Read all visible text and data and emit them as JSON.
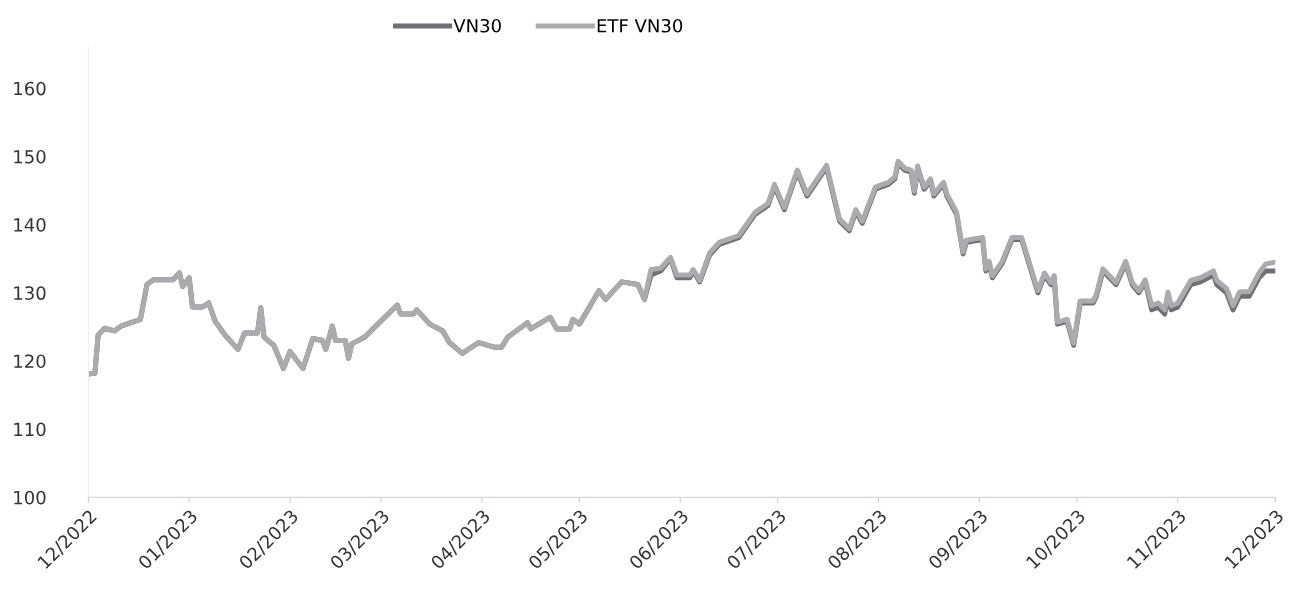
{
  "chart_data": {
    "type": "line",
    "x": [
      "2022-12-01",
      "2022-12-03",
      "2022-12-04",
      "2022-12-06",
      "2022-12-09",
      "2022-12-11",
      "2022-12-17",
      "2022-12-19",
      "2022-12-21",
      "2022-12-27",
      "2022-12-29",
      "2022-12-30",
      "2023-01-01",
      "2023-01-02",
      "2023-01-05",
      "2023-01-07",
      "2023-01-09",
      "2023-01-12",
      "2023-01-16",
      "2023-01-18",
      "2023-01-22",
      "2023-01-23",
      "2023-01-24",
      "2023-01-27",
      "2023-01-30",
      "2023-02-01",
      "2023-02-05",
      "2023-02-08",
      "2023-02-11",
      "2023-02-12",
      "2023-02-14",
      "2023-02-15",
      "2023-02-18",
      "2023-02-19",
      "2023-02-20",
      "2023-02-24",
      "2023-02-28",
      "2023-03-06",
      "2023-03-07",
      "2023-03-11",
      "2023-03-12",
      "2023-03-16",
      "2023-03-20",
      "2023-03-22",
      "2023-03-26",
      "2023-03-31",
      "2023-04-05",
      "2023-04-07",
      "2023-04-09",
      "2023-04-15",
      "2023-04-16",
      "2023-04-22",
      "2023-04-24",
      "2023-04-28",
      "2023-04-29",
      "2023-05-01",
      "2023-05-07",
      "2023-05-09",
      "2023-05-14",
      "2023-05-19",
      "2023-05-21",
      "2023-05-23",
      "2023-05-26",
      "2023-05-29",
      "2023-05-31",
      "2023-06-04",
      "2023-06-05",
      "2023-06-07",
      "2023-06-10",
      "2023-06-13",
      "2023-06-19",
      "2023-06-24",
      "2023-06-28",
      "2023-06-30",
      "2023-07-03",
      "2023-07-07",
      "2023-07-10",
      "2023-07-15",
      "2023-07-16",
      "2023-07-20",
      "2023-07-23",
      "2023-07-25",
      "2023-07-27",
      "2023-07-31",
      "2023-08-04",
      "2023-08-06",
      "2023-08-07",
      "2023-08-09",
      "2023-08-11",
      "2023-08-12",
      "2023-08-13",
      "2023-08-15",
      "2023-08-17",
      "2023-08-18",
      "2023-08-21",
      "2023-08-22",
      "2023-08-25",
      "2023-08-27",
      "2023-08-28",
      "2023-09-02",
      "2023-09-03",
      "2023-09-04",
      "2023-09-05",
      "2023-09-08",
      "2023-09-11",
      "2023-09-14",
      "2023-09-19",
      "2023-09-21",
      "2023-09-23",
      "2023-09-24",
      "2023-09-25",
      "2023-09-28",
      "2023-09-30",
      "2023-10-02",
      "2023-10-06",
      "2023-10-07",
      "2023-10-09",
      "2023-10-13",
      "2023-10-16",
      "2023-10-18",
      "2023-10-20",
      "2023-10-22",
      "2023-10-24",
      "2023-10-26",
      "2023-10-28",
      "2023-10-29",
      "2023-10-30",
      "2023-11-01",
      "2023-11-05",
      "2023-11-08",
      "2023-11-12",
      "2023-11-13",
      "2023-11-16",
      "2023-11-18",
      "2023-11-20",
      "2023-11-23",
      "2023-11-26",
      "2023-11-28",
      "2023-12-01"
    ],
    "series": [
      {
        "name": "VN30",
        "color": "#6e7075",
        "values": [
          118.1,
          118.2,
          123.8,
          124.8,
          124.4,
          125.1,
          126.1,
          131.2,
          131.9,
          131.9,
          132.9,
          130.9,
          132.2,
          127.9,
          127.9,
          128.5,
          125.8,
          123.8,
          121.7,
          124.1,
          124.1,
          127.8,
          123.5,
          122.3,
          118.9,
          121.4,
          118.9,
          123.3,
          123.0,
          121.7,
          125.1,
          123.0,
          123.0,
          120.4,
          122.5,
          123.5,
          125.4,
          128.2,
          126.9,
          126.9,
          127.5,
          125.4,
          124.4,
          122.7,
          121.1,
          122.7,
          122.0,
          122.0,
          123.5,
          125.6,
          124.7,
          126.4,
          124.7,
          124.7,
          126.1,
          125.4,
          130.3,
          129.0,
          131.6,
          131.2,
          129.0,
          132.6,
          133.2,
          135.0,
          132.2,
          132.2,
          133.2,
          131.6,
          135.5,
          137.1,
          138.1,
          141.5,
          142.8,
          145.6,
          142.2,
          147.7,
          144.2,
          147.7,
          148.4,
          140.5,
          139.1,
          141.9,
          140.2,
          145.2,
          145.9,
          146.7,
          149.0,
          148.0,
          147.7,
          144.6,
          148.3,
          145.2,
          146.4,
          144.2,
          145.9,
          144.2,
          141.5,
          135.7,
          137.4,
          137.8,
          133.2,
          134.3,
          132.2,
          134.3,
          137.8,
          137.8,
          130.0,
          132.6,
          131.2,
          132.2,
          125.4,
          125.8,
          122.3,
          128.5,
          128.5,
          129.5,
          133.2,
          131.2,
          134.3,
          131.2,
          130.0,
          131.6,
          127.5,
          127.9,
          126.9,
          129.5,
          127.5,
          127.9,
          131.2,
          131.6,
          132.6,
          131.2,
          130.0,
          127.5,
          129.5,
          129.5,
          132.2,
          133.2,
          133.2
        ]
      },
      {
        "name": "ETF VN30",
        "color": "#a9abae",
        "values": [
          118.1,
          118.2,
          123.8,
          124.8,
          124.4,
          125.1,
          126.1,
          131.2,
          131.9,
          131.9,
          132.9,
          130.9,
          132.2,
          127.9,
          127.9,
          128.5,
          125.8,
          123.8,
          121.7,
          124.1,
          124.1,
          127.8,
          123.5,
          122.3,
          118.9,
          121.4,
          118.9,
          123.3,
          123.0,
          121.7,
          125.1,
          123.0,
          123.0,
          120.4,
          122.5,
          123.5,
          125.4,
          128.2,
          126.9,
          126.9,
          127.5,
          125.4,
          124.4,
          122.7,
          121.1,
          122.7,
          122.0,
          122.0,
          123.5,
          125.6,
          124.7,
          126.4,
          124.7,
          124.7,
          126.1,
          125.4,
          130.3,
          129.0,
          131.6,
          131.2,
          129.0,
          133.4,
          133.6,
          135.2,
          132.6,
          132.6,
          133.4,
          131.8,
          135.8,
          137.4,
          138.4,
          141.8,
          143.1,
          145.9,
          142.5,
          148.0,
          144.5,
          148.0,
          148.7,
          140.8,
          139.4,
          142.2,
          140.5,
          145.5,
          146.2,
          147.0,
          149.3,
          148.3,
          148.0,
          144.9,
          148.6,
          145.5,
          146.7,
          144.5,
          146.2,
          144.5,
          141.8,
          136.0,
          137.7,
          138.1,
          133.5,
          134.6,
          132.5,
          134.6,
          138.1,
          138.1,
          130.3,
          132.9,
          131.5,
          132.5,
          125.7,
          126.1,
          122.6,
          128.8,
          128.8,
          129.8,
          133.5,
          131.5,
          134.6,
          131.5,
          130.3,
          131.9,
          128.1,
          128.5,
          127.5,
          130.1,
          128.1,
          128.5,
          131.8,
          132.2,
          133.2,
          131.8,
          130.6,
          128.1,
          130.1,
          130.2,
          132.9,
          134.2,
          134.5
        ]
      }
    ],
    "xlim": [
      "2022-12-01",
      "2023-12-01"
    ],
    "xticks": [
      {
        "value": "2022-12-01",
        "label": "12/2022"
      },
      {
        "value": "2023-01-01",
        "label": "01/2023"
      },
      {
        "value": "2023-02-01",
        "label": "02/2023"
      },
      {
        "value": "2023-03-01",
        "label": "03/2023"
      },
      {
        "value": "2023-04-01",
        "label": "04/2023"
      },
      {
        "value": "2023-05-01",
        "label": "05/2023"
      },
      {
        "value": "2023-06-01",
        "label": "06/2023"
      },
      {
        "value": "2023-07-01",
        "label": "07/2023"
      },
      {
        "value": "2023-08-01",
        "label": "08/2023"
      },
      {
        "value": "2023-09-01",
        "label": "09/2023"
      },
      {
        "value": "2023-10-01",
        "label": "10/2023"
      },
      {
        "value": "2023-11-01",
        "label": "11/2023"
      },
      {
        "value": "2023-12-01",
        "label": "12/2023"
      }
    ],
    "ylim": [
      100,
      166
    ],
    "yticks": [
      100,
      110,
      120,
      130,
      140,
      150,
      160
    ],
    "legend": "top",
    "line_style": "solid",
    "marker": "none"
  }
}
